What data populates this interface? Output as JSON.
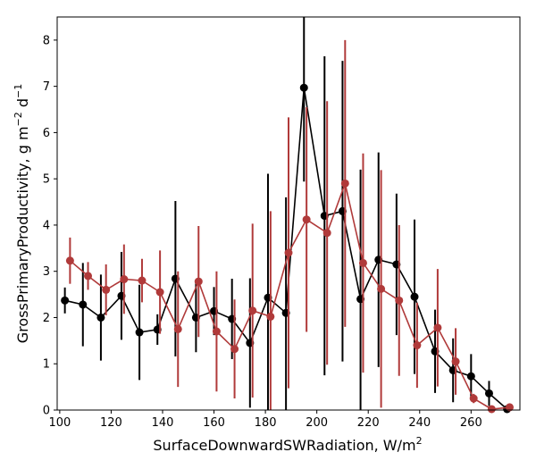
{
  "chart_data": {
    "type": "line",
    "title": "",
    "xlabel": "SurfaceDownwardSWRadiation,  W/m",
    "xlabel_sup": "2",
    "ylabel": "GrossPrimaryProductivity,  g m",
    "ylabel_sup1": "−2",
    "ylabel_mid": " d",
    "ylabel_sup2": "−1",
    "xlim": [
      99,
      279
    ],
    "ylim": [
      0,
      8.5
    ],
    "xticks": [
      100,
      120,
      140,
      160,
      180,
      200,
      220,
      240,
      260
    ],
    "yticks": [
      0,
      1,
      2,
      3,
      4,
      5,
      6,
      7,
      8
    ],
    "grid": false,
    "legend": "none",
    "series": [
      {
        "color": "#000000",
        "x": [
          102,
          109,
          116,
          124,
          131,
          138,
          145,
          153,
          160,
          167,
          174,
          181,
          188,
          195,
          203,
          210,
          217,
          224,
          231,
          238,
          246,
          253,
          260,
          267,
          274
        ],
        "y": [
          2.37,
          2.28,
          2.0,
          2.47,
          1.68,
          1.74,
          2.84,
          2.0,
          2.14,
          1.97,
          1.45,
          2.43,
          2.1,
          6.97,
          4.2,
          4.3,
          2.4,
          3.25,
          3.15,
          2.45,
          1.27,
          0.86,
          0.73,
          0.36,
          0.02
        ],
        "err": [
          0.28,
          0.9,
          0.93,
          0.95,
          1.03,
          0.33,
          1.68,
          0.75,
          0.52,
          0.87,
          1.4,
          2.68,
          2.5,
          2.03,
          3.45,
          3.25,
          2.8,
          2.32,
          1.53,
          1.67,
          0.9,
          0.69,
          0.48,
          0.27,
          0.07
        ]
      },
      {
        "color": "#b03a3a",
        "x": [
          104,
          111,
          118,
          125,
          132,
          139,
          146,
          154,
          161,
          168,
          175,
          182,
          189,
          196,
          204,
          211,
          218,
          225,
          232,
          239,
          247,
          254,
          261,
          268,
          275
        ],
        "y": [
          3.23,
          2.9,
          2.6,
          2.83,
          2.8,
          2.55,
          1.75,
          2.78,
          1.7,
          1.32,
          2.15,
          2.02,
          3.4,
          4.12,
          3.83,
          4.9,
          3.18,
          2.62,
          2.37,
          1.4,
          1.78,
          1.05,
          0.25,
          0.02,
          0.06
        ],
        "err": [
          0.5,
          0.3,
          0.55,
          0.75,
          0.47,
          0.9,
          1.25,
          1.2,
          1.3,
          1.07,
          1.88,
          2.28,
          2.93,
          2.43,
          2.85,
          3.1,
          2.37,
          2.57,
          1.63,
          0.92,
          1.27,
          0.72,
          0.1,
          0.04,
          0.02
        ]
      }
    ]
  }
}
